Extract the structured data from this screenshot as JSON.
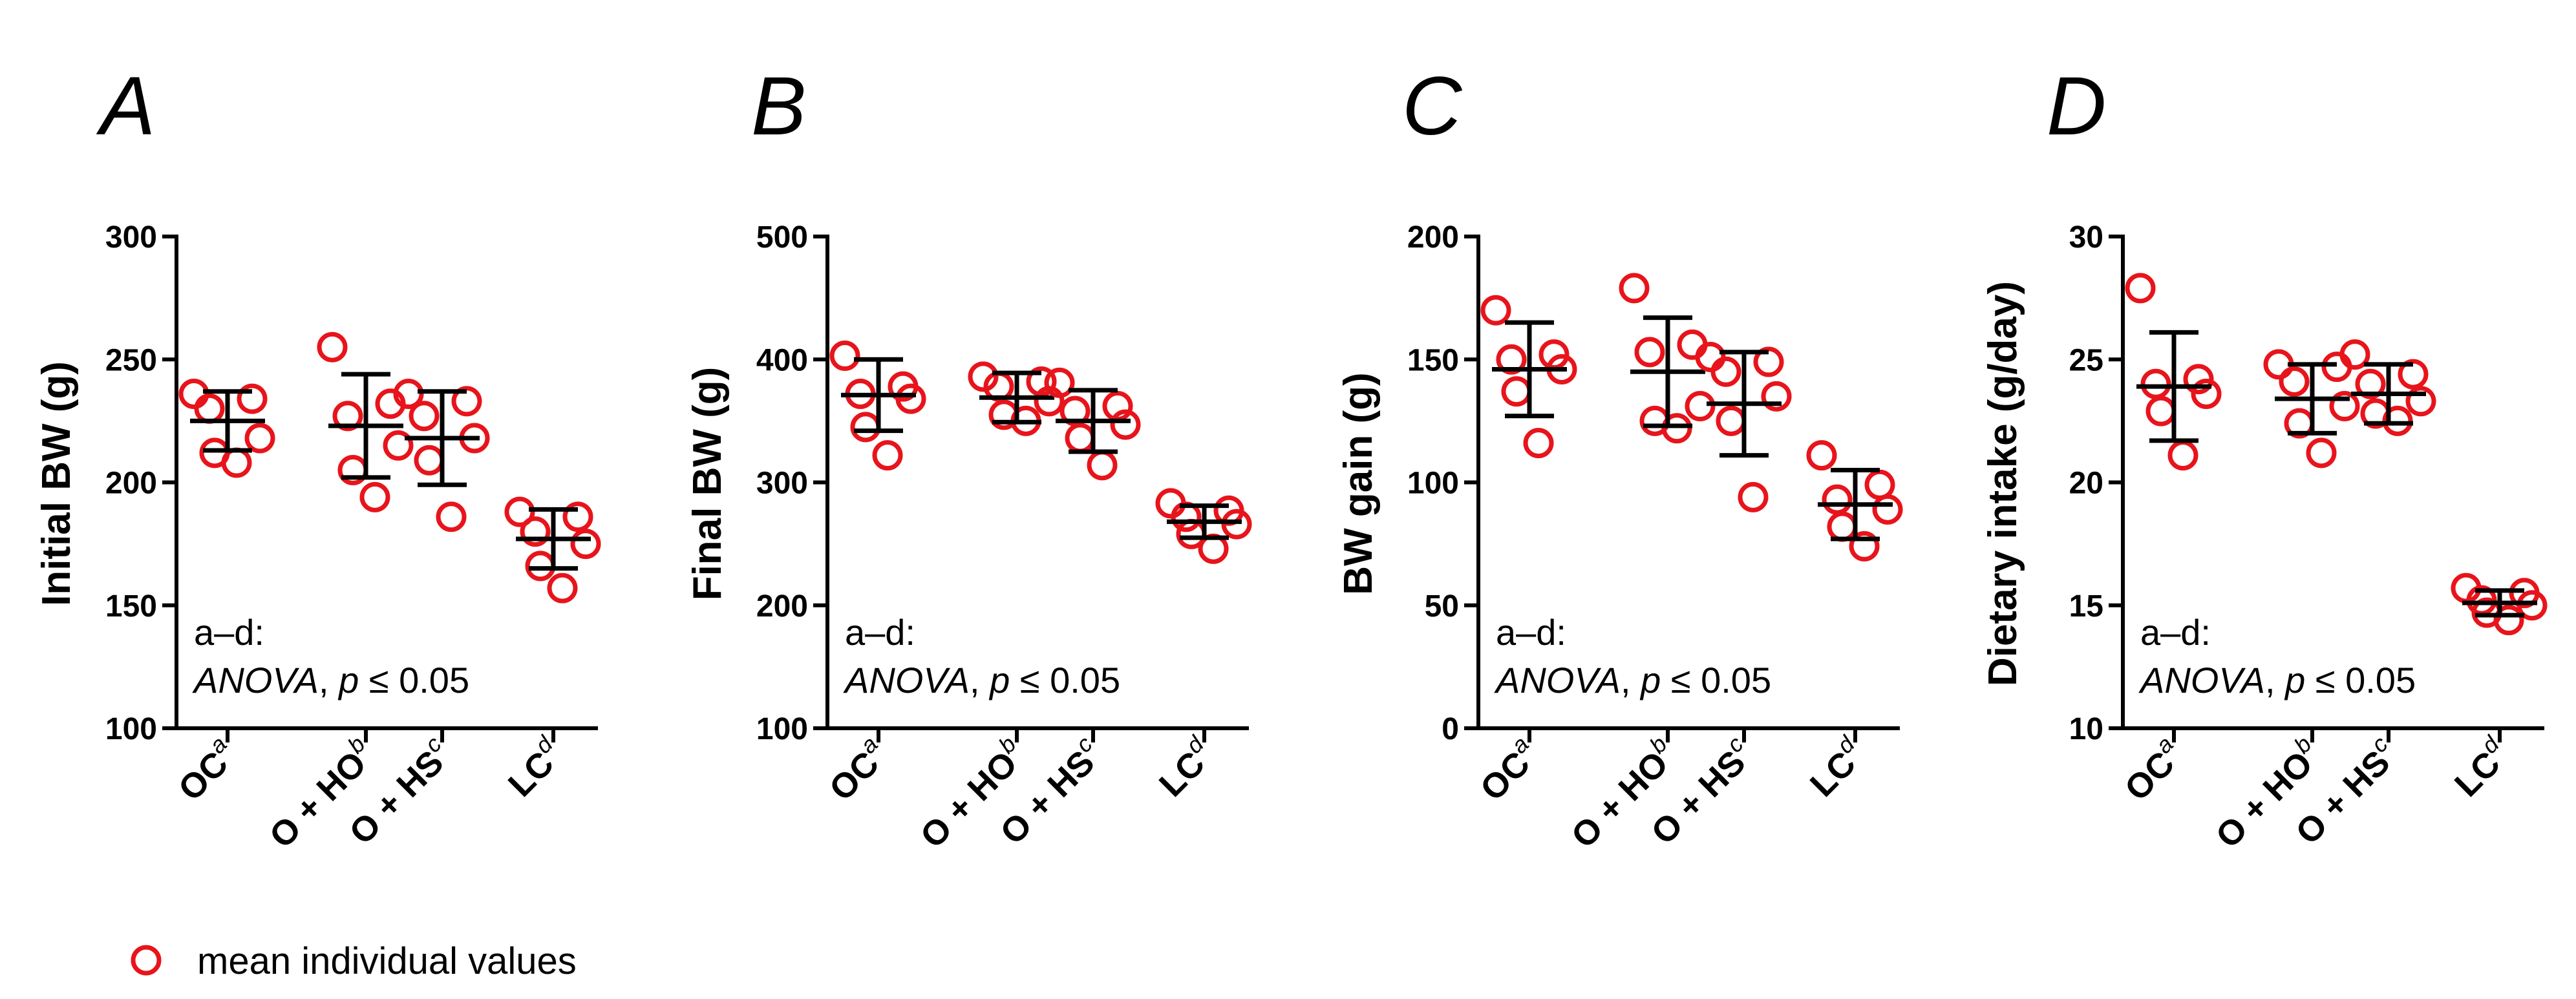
{
  "legend": {
    "label": "mean individual values",
    "marker_color": "#e8141b"
  },
  "annotation": {
    "line1": "a–d:",
    "line2_italic": "ANOVA",
    "line2_sep": ", ",
    "line2_p": "p",
    "line2_rest": " ≤ 0.05"
  },
  "chart_data": [
    {
      "type": "scatter",
      "panel": "A",
      "ylabel": "Initial BW (g)",
      "ylim": [
        100,
        300
      ],
      "yticks": [
        100,
        150,
        200,
        250,
        300
      ],
      "categories": [
        {
          "name": "OC",
          "sup": "a"
        },
        {
          "name": "O + HO",
          "sup": "b"
        },
        {
          "name": "O + HS",
          "sup": "c"
        },
        {
          "name": "LC",
          "sup": "d"
        }
      ],
      "groups": [
        {
          "mean": 225,
          "sd": 12,
          "points": [
            236,
            234,
            230,
            218,
            212,
            208
          ]
        },
        {
          "mean": 223,
          "sd": 21,
          "points": [
            255,
            232,
            227,
            215,
            205,
            194
          ]
        },
        {
          "mean": 218,
          "sd": 19,
          "points": [
            236,
            233,
            227,
            218,
            209,
            186
          ]
        },
        {
          "mean": 177,
          "sd": 12,
          "points": [
            188,
            186,
            180,
            175,
            166,
            157
          ]
        }
      ]
    },
    {
      "type": "scatter",
      "panel": "B",
      "ylabel": "Final BW (g)",
      "ylim": [
        100,
        500
      ],
      "yticks": [
        100,
        200,
        300,
        400,
        500
      ],
      "categories": [
        {
          "name": "OC",
          "sup": "a"
        },
        {
          "name": "O + HO",
          "sup": "b"
        },
        {
          "name": "O + HS",
          "sup": "c"
        },
        {
          "name": "LC",
          "sup": "d"
        }
      ],
      "groups": [
        {
          "mean": 371,
          "sd": 29,
          "points": [
            403,
            378,
            372,
            368,
            345,
            322
          ]
        },
        {
          "mean": 369,
          "sd": 20,
          "points": [
            386,
            382,
            378,
            366,
            355,
            350
          ]
        },
        {
          "mean": 350,
          "sd": 25,
          "points": [
            381,
            362,
            358,
            347,
            336,
            314
          ]
        },
        {
          "mean": 268,
          "sd": 13,
          "points": [
            283,
            277,
            272,
            266,
            258,
            246
          ]
        }
      ]
    },
    {
      "type": "scatter",
      "panel": "C",
      "ylabel": "BW gain (g)",
      "ylim": [
        0,
        200
      ],
      "yticks": [
        0,
        50,
        100,
        150,
        200
      ],
      "categories": [
        {
          "name": "OC",
          "sup": "a"
        },
        {
          "name": "O + HO",
          "sup": "b"
        },
        {
          "name": "O + HS",
          "sup": "c"
        },
        {
          "name": "LC",
          "sup": "d"
        }
      ],
      "groups": [
        {
          "mean": 146,
          "sd": 19,
          "points": [
            170,
            152,
            150,
            146,
            137,
            116
          ]
        },
        {
          "mean": 145,
          "sd": 22,
          "points": [
            179,
            156,
            153,
            131,
            125,
            122
          ]
        },
        {
          "mean": 132,
          "sd": 21,
          "points": [
            151,
            149,
            145,
            135,
            125,
            94
          ]
        },
        {
          "mean": 91,
          "sd": 14,
          "points": [
            111,
            99,
            93,
            89,
            82,
            74
          ]
        }
      ]
    },
    {
      "type": "scatter",
      "panel": "D",
      "ylabel": "Dietary  intake (g/day)",
      "ylim": [
        10,
        30
      ],
      "yticks": [
        10,
        15,
        20,
        25,
        30
      ],
      "categories": [
        {
          "name": "OC",
          "sup": "a"
        },
        {
          "name": "O + HO",
          "sup": "b"
        },
        {
          "name": "O + HS",
          "sup": "c"
        },
        {
          "name": "LC",
          "sup": "d"
        }
      ],
      "groups": [
        {
          "mean": 23.9,
          "sd": 2.2,
          "points": [
            27.9,
            24.2,
            24.0,
            23.6,
            22.9,
            21.1
          ]
        },
        {
          "mean": 23.4,
          "sd": 1.4,
          "points": [
            24.8,
            24.7,
            24.1,
            23.1,
            22.4,
            21.2
          ]
        },
        {
          "mean": 23.6,
          "sd": 1.2,
          "points": [
            25.2,
            24.4,
            24.0,
            23.3,
            22.8,
            22.5
          ]
        },
        {
          "mean": 15.1,
          "sd": 0.5,
          "points": [
            15.7,
            15.5,
            15.2,
            15.0,
            14.7,
            14.4
          ]
        }
      ]
    }
  ]
}
